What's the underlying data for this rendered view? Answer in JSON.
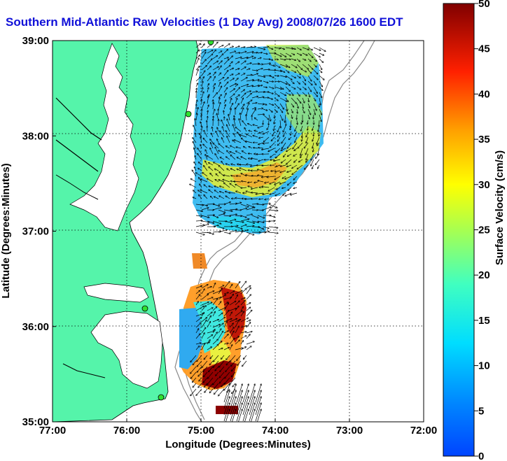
{
  "title": "Southern Mid-Atlantic Raw Velocities (1 Day Avg) 2008/07/26 1600 EDT",
  "x_axis": {
    "label": "Longitude (Degrees:Minutes)",
    "ticks": [
      "77:00",
      "76:00",
      "75:00",
      "74:00",
      "73:00",
      "72:00"
    ]
  },
  "y_axis": {
    "label": "Latitude (Degrees:Minutes)",
    "ticks": [
      "39:00",
      "38:00",
      "37:00",
      "36:00",
      "35:00"
    ]
  },
  "colorbar": {
    "label": "Surface Velocity (cm/s)",
    "ticks": [
      "50",
      "45",
      "40",
      "35",
      "30",
      "25",
      "20",
      "15",
      "10",
      "5",
      "0"
    ],
    "range": [
      0,
      50
    ],
    "colormap": "jet"
  },
  "map": {
    "extent": {
      "lon": [
        -77,
        -72
      ],
      "lat": [
        35,
        39
      ]
    },
    "land_color": "#55f4aa",
    "grid": "dotted",
    "stations": 4
  }
}
